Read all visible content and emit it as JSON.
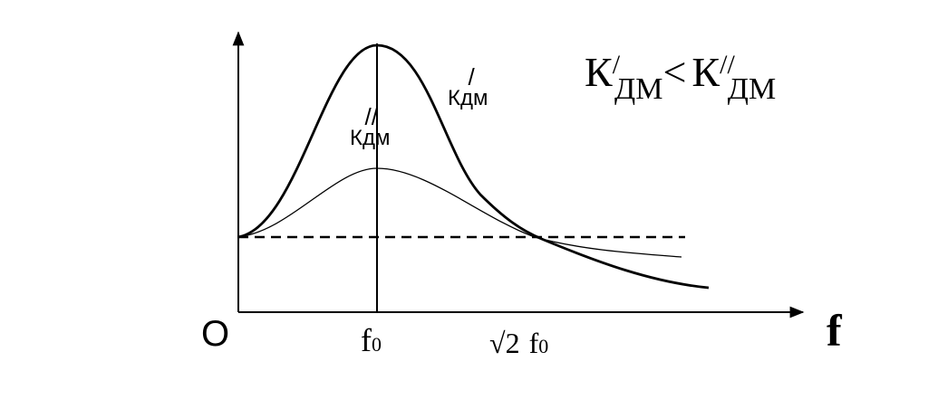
{
  "axes": {
    "origin": "O",
    "x_label": "f",
    "ticks": [
      {
        "base": "f",
        "sub": "0"
      },
      {
        "root": "√2",
        "base": "f",
        "sub": "0"
      }
    ]
  },
  "curves": [
    {
      "base": "Кдм",
      "sup": "/"
    },
    {
      "base": "Кдм",
      "sup": "//"
    }
  ],
  "relation": {
    "left": {
      "base": "К",
      "sup": "/",
      "sub": "ДМ"
    },
    "op": "<",
    "right": {
      "base": "К",
      "sup": "//",
      "sub": "ДМ"
    }
  }
}
